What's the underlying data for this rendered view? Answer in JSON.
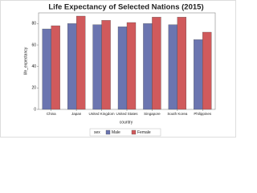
{
  "chart_data": {
    "type": "bar",
    "title": "Life Expectancy of Selected Nations (2015)",
    "x_label": "country",
    "y_label": "life_expectancy",
    "legend_title": "sex",
    "categories": [
      "China",
      "Japan",
      "United Kingdom",
      "United States",
      "Singapore",
      "South Korea",
      "Philippines"
    ],
    "series": [
      {
        "name": "Male",
        "color": "#6b75b0",
        "values": [
          75,
          80,
          79,
          77,
          80,
          79,
          65
        ]
      },
      {
        "name": "Female",
        "color": "#d05a5c",
        "values": [
          78,
          87,
          83,
          81,
          86,
          86,
          72
        ]
      }
    ],
    "ylim": [
      0,
      90
    ],
    "yticks": [
      0,
      20,
      40,
      60,
      80
    ]
  }
}
